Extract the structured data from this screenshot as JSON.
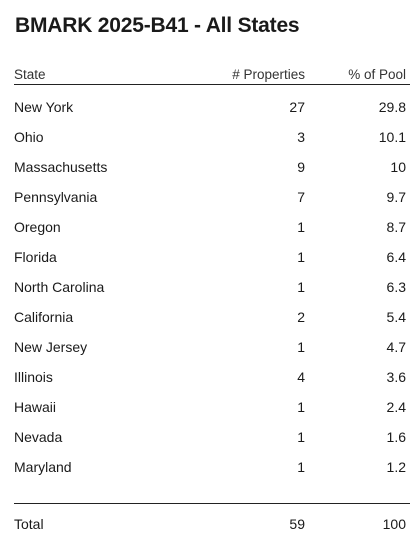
{
  "title": "BMARK 2025-B41 - All States",
  "columns": {
    "state": "State",
    "properties": "# Properties",
    "pool": "% of Pool"
  },
  "rows": [
    {
      "state": "New York",
      "properties": "27",
      "pool": "29.8"
    },
    {
      "state": "Ohio",
      "properties": "3",
      "pool": "10.1"
    },
    {
      "state": "Massachusetts",
      "properties": "9",
      "pool": "10"
    },
    {
      "state": "Pennsylvania",
      "properties": "7",
      "pool": "9.7"
    },
    {
      "state": "Oregon",
      "properties": "1",
      "pool": "8.7"
    },
    {
      "state": "Florida",
      "properties": "1",
      "pool": "6.4"
    },
    {
      "state": "North Carolina",
      "properties": "1",
      "pool": "6.3"
    },
    {
      "state": "California",
      "properties": "2",
      "pool": "5.4"
    },
    {
      "state": "New Jersey",
      "properties": "1",
      "pool": "4.7"
    },
    {
      "state": "Illinois",
      "properties": "4",
      "pool": "3.6"
    },
    {
      "state": "Hawaii",
      "properties": "1",
      "pool": "2.4"
    },
    {
      "state": "Nevada",
      "properties": "1",
      "pool": "1.6"
    },
    {
      "state": "Maryland",
      "properties": "1",
      "pool": "1.2"
    }
  ],
  "total": {
    "label": "Total",
    "properties": "59",
    "pool": "100"
  }
}
